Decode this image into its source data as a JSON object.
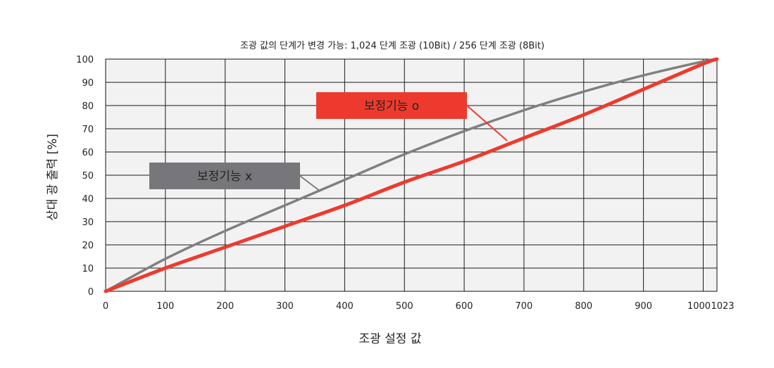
{
  "chart_data": {
    "type": "line",
    "title": "조광 값의 단계가 변경 가능: 1,024 단계 조광 (10Bit) / 256 단계 조광 (8Bit)",
    "xlabel": "조광 설정 값",
    "ylabel": "상대 광 출력 [%]",
    "xlim": [
      0,
      1023
    ],
    "ylim": [
      0,
      100
    ],
    "grid": true,
    "x_ticks": [
      0,
      100,
      200,
      300,
      400,
      500,
      600,
      700,
      800,
      900,
      1000,
      1023
    ],
    "x_tick_labels": [
      "0",
      "100",
      "200",
      "300",
      "400",
      "500",
      "600",
      "700",
      "800",
      "900",
      "1000",
      "1023"
    ],
    "y_ticks": [
      0,
      10,
      20,
      30,
      40,
      50,
      60,
      70,
      80,
      90,
      100
    ],
    "y_tick_labels": [
      "0",
      "10",
      "20",
      "30",
      "40",
      "50",
      "60",
      "70",
      "80",
      "90",
      "100"
    ],
    "series": [
      {
        "name": "보정기능 x",
        "color": "#808080",
        "x": [
          0,
          100,
          200,
          300,
          400,
          500,
          600,
          700,
          800,
          900,
          1000,
          1023
        ],
        "y": [
          0,
          14,
          26,
          37,
          48,
          59,
          69,
          78,
          86,
          93,
          99,
          100
        ]
      },
      {
        "name": "보정기능 o",
        "color": "#ee3a2e",
        "x": [
          0,
          100,
          200,
          300,
          400,
          500,
          600,
          700,
          800,
          900,
          1000,
          1023
        ],
        "y": [
          0,
          10,
          19,
          28,
          37,
          47,
          56,
          66,
          76,
          87,
          98,
          100
        ]
      }
    ],
    "callouts": [
      {
        "label": "보정기능 o",
        "fill": "#ee3a2e",
        "text_color": "#222222",
        "series_index": 1
      },
      {
        "label": "보정기능 x",
        "fill": "#77777b",
        "text_color": "#222222",
        "series_index": 0
      }
    ]
  }
}
